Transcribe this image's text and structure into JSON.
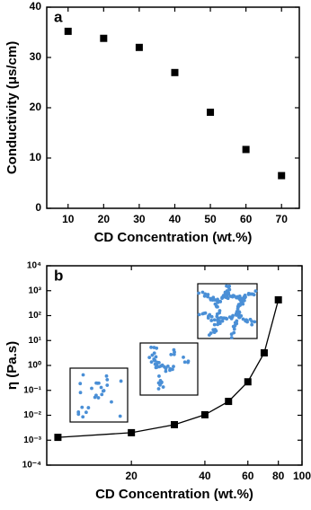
{
  "chart_data": [
    {
      "type": "scatter",
      "label": "a",
      "xlabel": "CD Concentration (wt.%)",
      "ylabel": "Conductivity (μs/cm)",
      "x": [
        10,
        20,
        30,
        40,
        50,
        60,
        70
      ],
      "values": [
        35.2,
        33.8,
        32,
        27,
        19.1,
        11.7,
        6.5
      ],
      "color": "#000000",
      "xlim": [
        4,
        75
      ],
      "ylim": [
        0,
        40
      ],
      "xticks": [
        10,
        20,
        30,
        40,
        50,
        60,
        70
      ],
      "yticks": [
        0,
        10,
        20,
        30,
        40
      ]
    },
    {
      "type": "line",
      "label": "b",
      "xlabel": "CD Concentration (wt.%)",
      "ylabel": "η (Pa.s)",
      "x": [
        10,
        20,
        30,
        40,
        50,
        60,
        70,
        80
      ],
      "values": [
        0.0013,
        0.002,
        0.0042,
        0.0105,
        0.036,
        0.22,
        3.2,
        430
      ],
      "color": "#000000",
      "xlog": true,
      "ylog": true,
      "xlim": [
        9,
        100
      ],
      "ylim": [
        0.0001,
        10000
      ],
      "xticks": [
        20,
        40,
        60,
        80,
        100
      ],
      "yticks": [
        {
          "value": 0.0001,
          "label": "10⁻⁴"
        },
        {
          "value": 0.001,
          "label": "10⁻³"
        },
        {
          "value": 0.01,
          "label": "10⁻²"
        },
        {
          "value": 0.1,
          "label": "10⁻¹"
        },
        {
          "value": 1,
          "label": "10⁰"
        },
        {
          "value": 10,
          "label": "10¹"
        },
        {
          "value": 100,
          "label": "10²"
        },
        {
          "value": 1000,
          "label": "10³"
        },
        {
          "value": 10000,
          "label": "10⁴"
        }
      ]
    }
  ]
}
